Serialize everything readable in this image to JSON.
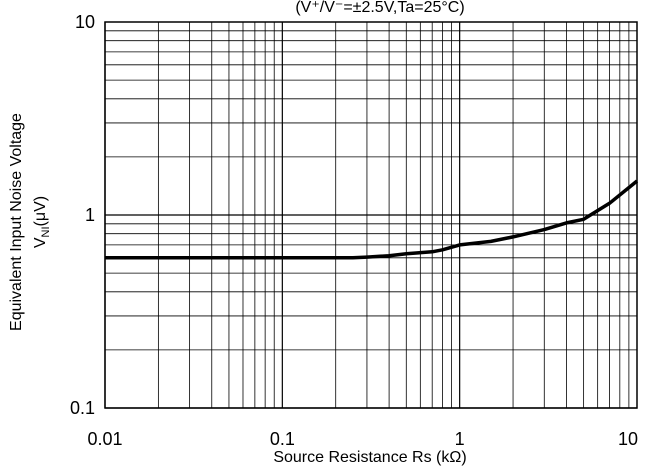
{
  "chart_data": {
    "type": "line",
    "subtitle": "(V⁺/V⁻=±2.5V,Ta=25°C)",
    "xlabel": "Source Resistance Rs (kΩ)",
    "ylabel_line1": "Equivalent Input Noise Voltage",
    "ylabel_line2": "V",
    "ylabel_sub": "NI",
    "ylabel_unit": "(μV)",
    "x_scale": "log",
    "y_scale": "log",
    "xlim": [
      0.01,
      10
    ],
    "ylim": [
      0.1,
      10
    ],
    "x_ticks": [
      "0.01",
      "0.1",
      "1",
      "10"
    ],
    "y_ticks": [
      "0.1",
      "1",
      "10"
    ],
    "grid": true,
    "series": [
      {
        "x": [
          0.01,
          0.02,
          0.05,
          0.1,
          0.2,
          0.25,
          0.3,
          0.4,
          0.5,
          0.7,
          0.8,
          1.0,
          1.5,
          2.0,
          3.0,
          4.0,
          5.0,
          7.0,
          10.0
        ],
        "y": [
          0.6,
          0.6,
          0.6,
          0.6,
          0.6,
          0.6,
          0.605,
          0.615,
          0.63,
          0.645,
          0.66,
          0.7,
          0.73,
          0.77,
          0.84,
          0.91,
          0.95,
          1.15,
          1.5
        ]
      }
    ]
  }
}
